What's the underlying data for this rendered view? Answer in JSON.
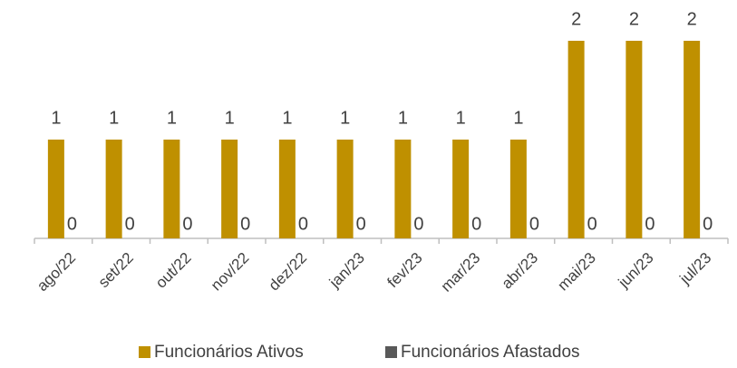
{
  "chart_data": {
    "type": "bar",
    "categories": [
      "ago/22",
      "set/22",
      "out/22",
      "nov/22",
      "dez/22",
      "jan/23",
      "fev/23",
      "mar/23",
      "abr/23",
      "mai/23",
      "jun/23",
      "jul/23"
    ],
    "series": [
      {
        "name": "Funcionários Ativos",
        "color": "#bf9000",
        "values": [
          1,
          1,
          1,
          1,
          1,
          1,
          1,
          1,
          1,
          2,
          2,
          2
        ]
      },
      {
        "name": "Funcionários Afastados",
        "color": "#595959",
        "values": [
          0,
          0,
          0,
          0,
          0,
          0,
          0,
          0,
          0,
          0,
          0,
          0
        ]
      }
    ],
    "legend": "bottom"
  }
}
